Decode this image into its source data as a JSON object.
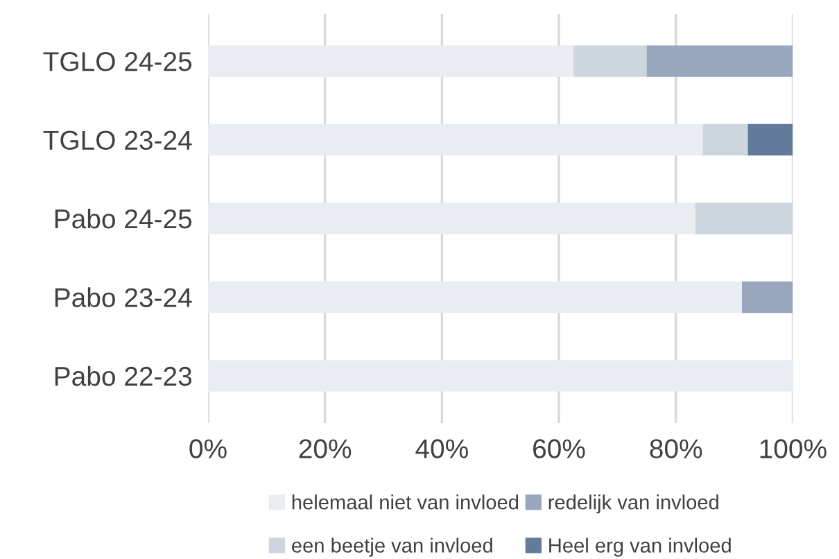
{
  "chart_data": {
    "type": "bar",
    "orientation": "horizontal",
    "stacked": true,
    "categories": [
      "TGLO 24-25",
      "TGLO 23-24",
      "Pabo 24-25",
      "Pabo 23-24",
      "Pabo 22-23"
    ],
    "series": [
      {
        "name": "helemaal niet van invloed",
        "color": "#e9edf2",
        "values": [
          62.5,
          84.6,
          83.3,
          91.3,
          100
        ]
      },
      {
        "name": "een beetje van invloed",
        "color": "#cdd5df",
        "values": [
          12.5,
          7.7,
          16.7,
          0,
          0
        ]
      },
      {
        "name": "redelijk van invloed",
        "color": "#98a7bd",
        "values": [
          25,
          0,
          0,
          8.7,
          0
        ]
      },
      {
        "name": "Heel erg van invloed",
        "color": "#647c9b",
        "values": [
          0,
          7.7,
          0,
          0,
          0
        ]
      }
    ],
    "xlim": [
      0,
      100
    ],
    "xticks": [
      {
        "value": 0,
        "label": "0%"
      },
      {
        "value": 20,
        "label": "20%"
      },
      {
        "value": 40,
        "label": "40%"
      },
      {
        "value": 60,
        "label": "60%"
      },
      {
        "value": 80,
        "label": "80%"
      },
      {
        "value": 100,
        "label": "100%"
      }
    ],
    "grid": "x",
    "legend": "bottom"
  }
}
